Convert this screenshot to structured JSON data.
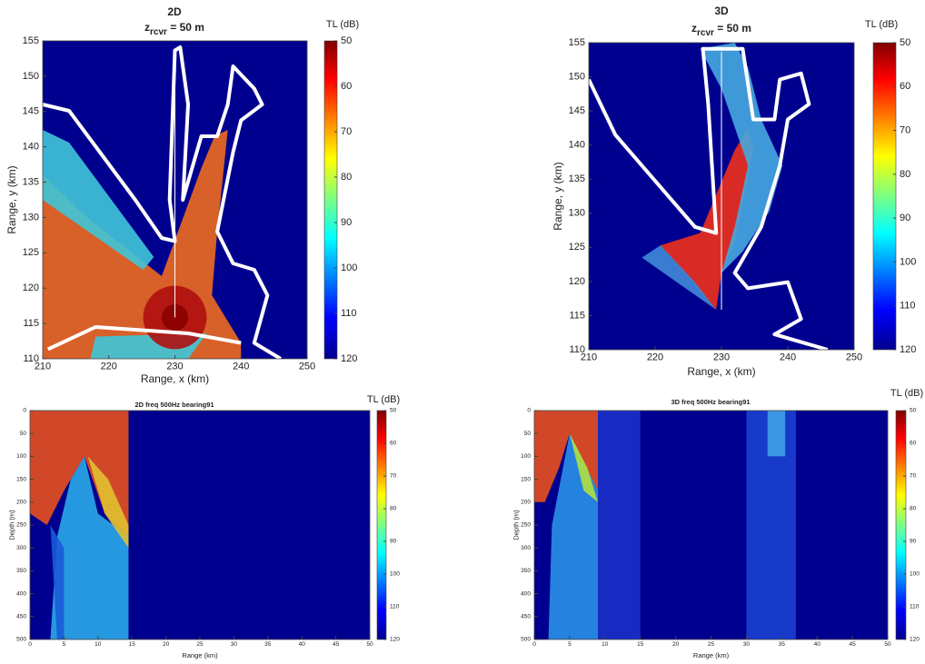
{
  "chart_data": [
    {
      "type": "heatmap",
      "title": "2D",
      "subtitle": [
        "z",
        "rcvr",
        " = 50 m"
      ],
      "xlabel": "Range, x (km)",
      "ylabel": "Range, y (km)",
      "xlim": [
        210,
        250
      ],
      "xticks": [
        210,
        220,
        230,
        240,
        250
      ],
      "ylim": [
        110,
        155
      ],
      "yticks": [
        110,
        115,
        120,
        125,
        130,
        135,
        140,
        145,
        150,
        155
      ],
      "y_reversed": false,
      "colorbar": {
        "label": "TL (dB)",
        "lim": [
          50,
          120
        ],
        "ticks": [
          50,
          60,
          70,
          80,
          90,
          100,
          110,
          120
        ]
      }
    },
    {
      "type": "heatmap",
      "title": "3D",
      "subtitle": [
        "z",
        "rcvr",
        " = 50 m"
      ],
      "xlabel": "Range, x (km)",
      "ylabel": "Range, y (km)",
      "xlim": [
        210,
        250
      ],
      "xticks": [
        210,
        220,
        230,
        240,
        250
      ],
      "ylim": [
        110,
        155
      ],
      "yticks": [
        110,
        115,
        120,
        125,
        130,
        135,
        140,
        145,
        150,
        155
      ],
      "y_reversed": false,
      "colorbar": {
        "label": "TL (dB)",
        "lim": [
          50,
          120
        ],
        "ticks": [
          50,
          60,
          70,
          80,
          90,
          100,
          110,
          120
        ]
      }
    },
    {
      "type": "heatmap",
      "title": "2D freq 500Hz bearing91",
      "xlabel": "Range (km)",
      "ylabel": "Depth (m)",
      "xlim": [
        0,
        50
      ],
      "xticks": [
        0,
        5,
        10,
        15,
        20,
        25,
        30,
        35,
        40,
        45,
        50
      ],
      "ylim": [
        0,
        500
      ],
      "yticks": [
        0,
        50,
        100,
        150,
        200,
        250,
        300,
        350,
        400,
        450,
        500
      ],
      "y_reversed": true,
      "colorbar": {
        "label": "TL (dB)",
        "lim": [
          50,
          120
        ],
        "ticks": [
          50,
          60,
          70,
          80,
          90,
          100,
          110,
          120
        ]
      }
    },
    {
      "type": "heatmap",
      "title": "3D freq 500Hz bearing91",
      "xlabel": "Range (km)",
      "ylabel": "Depth (m)",
      "xlim": [
        0,
        50
      ],
      "xticks": [
        0,
        5,
        10,
        15,
        20,
        25,
        30,
        35,
        40,
        45,
        50
      ],
      "ylim": [
        0,
        500
      ],
      "yticks": [
        0,
        50,
        100,
        150,
        200,
        250,
        300,
        350,
        400,
        450,
        500
      ],
      "y_reversed": true,
      "colorbar": {
        "label": "TL (dB)",
        "lim": [
          50,
          120
        ],
        "ticks": [
          50,
          60,
          70,
          80,
          90,
          100,
          110,
          120
        ]
      }
    }
  ]
}
